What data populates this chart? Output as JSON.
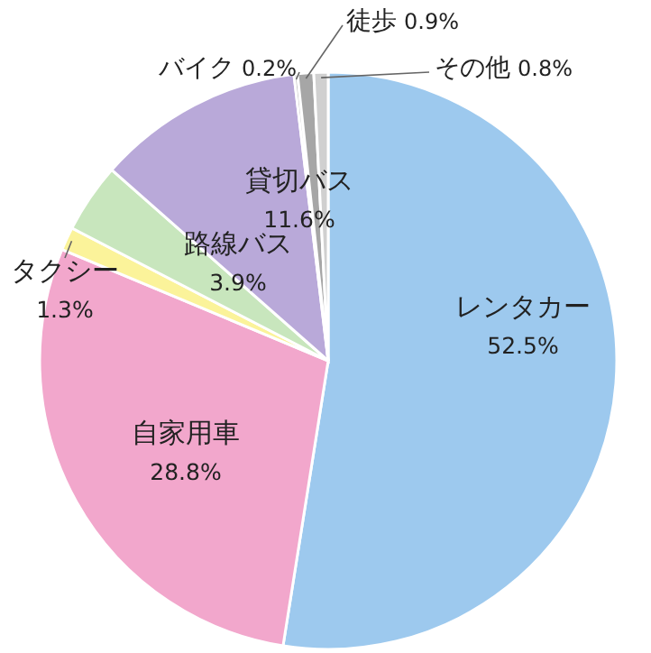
{
  "chart_data": {
    "type": "pie",
    "categories": [
      "レンタカー",
      "自家用車",
      "タクシー",
      "路線バス",
      "貸切バス",
      "バイク",
      "徒歩",
      "その他"
    ],
    "values": [
      52.5,
      28.8,
      1.3,
      3.9,
      11.6,
      0.2,
      0.9,
      0.8
    ],
    "value_labels": [
      "52.5%",
      "28.8%",
      "1.3%",
      "3.9%",
      "11.6%",
      "0.2%",
      "0.9%",
      "0.8%"
    ],
    "colors": [
      "#9dc9ee",
      "#f2a7cc",
      "#fbf39a",
      "#c8e6bd",
      "#b9a9d9",
      "#bfbfbf",
      "#a6a6a6",
      "#d0d0d0"
    ]
  }
}
